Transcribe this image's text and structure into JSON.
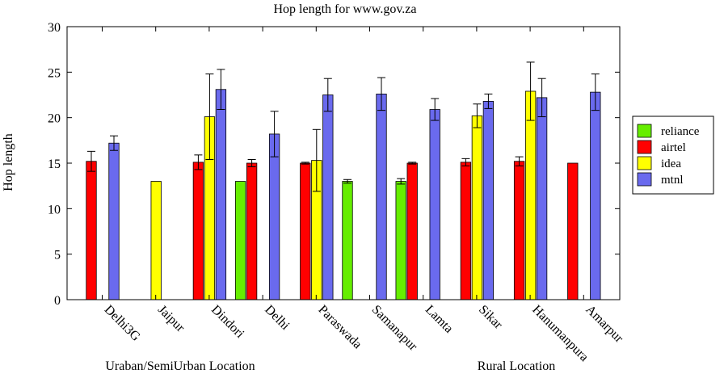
{
  "chart_data": {
    "type": "bar",
    "title": "Hop length for www.gov.za",
    "ylabel": "Hop length",
    "xlabel": "",
    "ylim": [
      0,
      30
    ],
    "yticks": [
      0,
      5,
      10,
      15,
      20,
      25,
      30
    ],
    "grid": false,
    "legend_position": "right",
    "categories": [
      "Delhi3G",
      "Jaipur",
      "Dindori",
      "Delhi",
      "Paraswada",
      "Samanapur",
      "Lamta",
      "Sikar",
      "Hanumanpura",
      "Amarpur"
    ],
    "group_labels": [
      "Uraban/SemiUrban Location",
      "Rural Location"
    ],
    "series": [
      {
        "name": "reliance",
        "color": "#66ee00",
        "values": [
          null,
          null,
          null,
          13.0,
          null,
          13.0,
          13.0,
          null,
          null,
          null
        ],
        "err": [
          null,
          null,
          null,
          null,
          null,
          0.2,
          0.3,
          null,
          null,
          null
        ]
      },
      {
        "name": "airtel",
        "color": "#ff0000",
        "values": [
          15.2,
          null,
          15.1,
          15.0,
          15.0,
          null,
          15.0,
          15.1,
          15.2,
          15.0
        ],
        "err": [
          1.1,
          null,
          0.8,
          0.4,
          0.1,
          null,
          0.1,
          0.4,
          0.5,
          null
        ]
      },
      {
        "name": "idea",
        "color": "#ffff00",
        "values": [
          null,
          13.0,
          20.1,
          null,
          15.3,
          null,
          null,
          20.2,
          22.9,
          null
        ],
        "err": [
          null,
          null,
          4.7,
          null,
          3.4,
          null,
          null,
          1.3,
          3.2,
          null
        ]
      },
      {
        "name": "mtnl",
        "color": "#6a6aee",
        "values": [
          17.2,
          null,
          23.1,
          18.2,
          22.5,
          22.6,
          20.9,
          21.8,
          22.2,
          22.8
        ],
        "err": [
          0.8,
          null,
          2.2,
          2.5,
          1.8,
          1.8,
          1.2,
          0.8,
          2.1,
          2.0
        ]
      }
    ]
  }
}
